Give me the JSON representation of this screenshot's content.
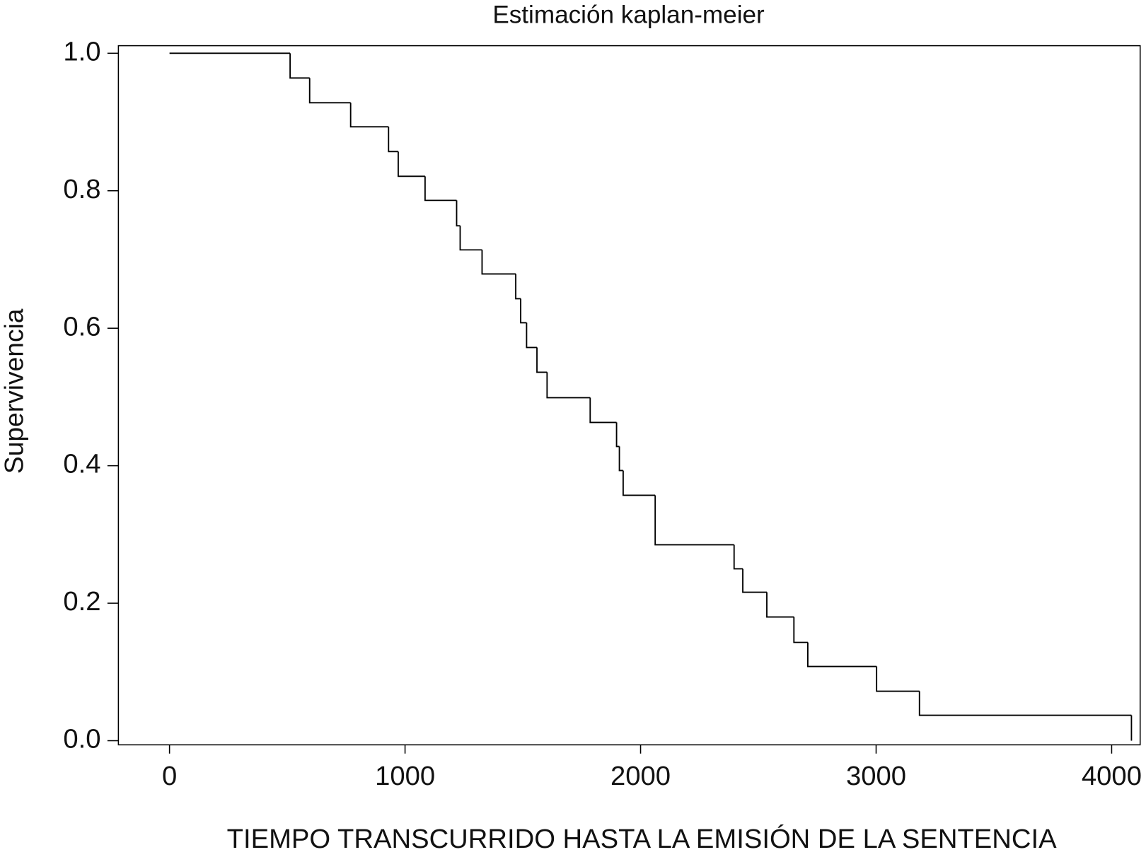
{
  "chart_data": {
    "type": "step",
    "title": "Estimación kaplan-meier",
    "xlabel": "TIEMPO TRANSCURRIDO HASTA LA EMISIÓN DE LA SENTENCIA",
    "ylabel": "Supervivencia",
    "x": [
      0,
      512,
      595,
      769,
      930,
      971,
      1085,
      1219,
      1234,
      1327,
      1470,
      1491,
      1516,
      1560,
      1603,
      1786,
      1898,
      1910,
      1926,
      2062,
      2397,
      2434,
      2536,
      2651,
      2710,
      3002,
      3184,
      4084
    ],
    "values": [
      1.0,
      0.964,
      0.928,
      0.893,
      0.857,
      0.821,
      0.786,
      0.749,
      0.714,
      0.679,
      0.643,
      0.608,
      0.572,
      0.536,
      0.499,
      0.463,
      0.428,
      0.393,
      0.357,
      0.285,
      0.25,
      0.216,
      0.18,
      0.143,
      0.108,
      0.072,
      0.037,
      0.0
    ],
    "color": "#000000",
    "xlim": [
      -217,
      4121
    ],
    "ylim": [
      -0.006,
      1.011
    ],
    "xticks": [
      0,
      1000,
      2000,
      3000,
      4000
    ],
    "yticks": [
      {
        "value": 0,
        "label": "0.0"
      },
      0.2,
      0.4,
      0.6,
      0.8,
      {
        "value": 1,
        "label": "1.0"
      }
    ],
    "grid": false
  }
}
